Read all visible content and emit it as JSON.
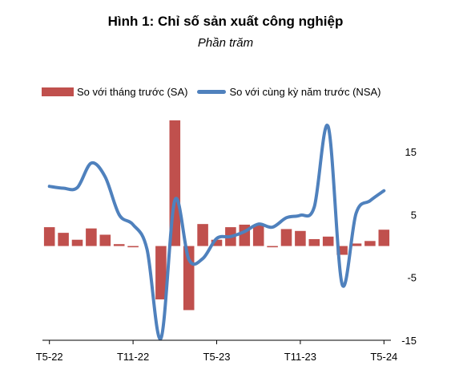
{
  "chart_data": {
    "type": "bar+line",
    "title": "Hình 1: Chỉ số sản xuất công nghiệp",
    "subtitle": "Phần trăm",
    "x_tick_labels": [
      "T5-22",
      "T11-22",
      "T5-23",
      "T11-23",
      "T5-24"
    ],
    "ylim": [
      -15,
      20
    ],
    "y_ticks": [
      -15,
      -5,
      5,
      15
    ],
    "legend_position": "top",
    "series": [
      {
        "name": "So với tháng trước (SA)",
        "type": "bar",
        "color": "#c0504d",
        "values": [
          3.0,
          2.1,
          1.0,
          2.8,
          1.8,
          0.3,
          -0.2,
          0,
          -8.5,
          20,
          -10.2,
          3.5,
          1.0,
          3.0,
          3.4,
          3.4,
          -0.2,
          2.7,
          2.4,
          1.1,
          1.5,
          -1.4,
          0.4,
          0.8,
          2.6
        ]
      },
      {
        "name": "So với cùng kỳ năm trước (NSA)",
        "type": "line",
        "color": "#4f81bd",
        "values": [
          9.5,
          9.2,
          9.3,
          13.2,
          11.0,
          5.0,
          3.4,
          -0.5,
          -14.7,
          7.3,
          -2.1,
          -2.0,
          1.2,
          1.5,
          2.3,
          3.5,
          3.0,
          4.5,
          4.9,
          6.2,
          19.0,
          -6.1,
          5.2,
          7.2,
          8.8
        ]
      }
    ]
  }
}
